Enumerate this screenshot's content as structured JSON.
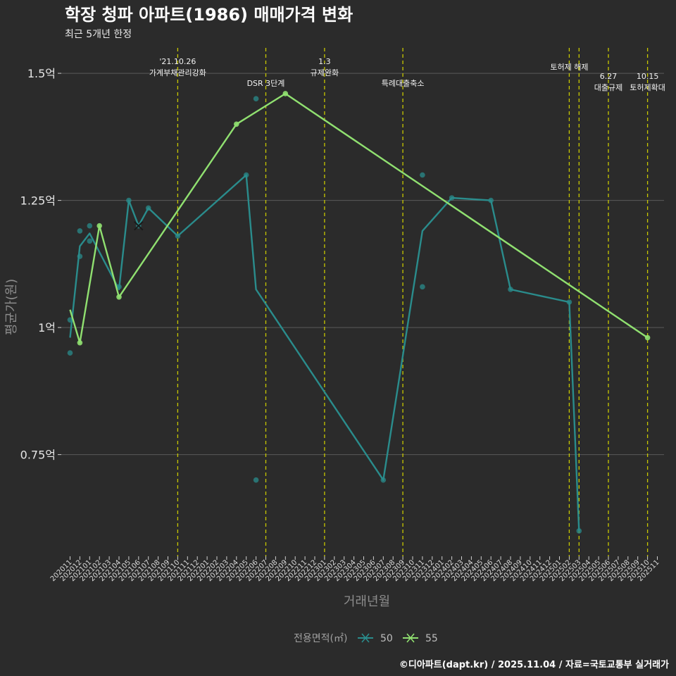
{
  "colors": {
    "background": "#2b2b2b",
    "grid": "#5a5a5a",
    "event_line": "#c8c800",
    "series_50": "#2a8c8c",
    "series_55": "#90e070"
  },
  "chart_data": {
    "type": "line",
    "title": "학장 청파 아파트(1986) 매매가격 변화",
    "subtitle": "최근 5개년 한정",
    "xlabel": "거래년월",
    "ylabel": "평균가(원)",
    "ylim": [
      0.55,
      1.55
    ],
    "y_ticks": [
      {
        "value": 0.75,
        "label": "0.75억"
      },
      {
        "value": 1.0,
        "label": "1억"
      },
      {
        "value": 1.25,
        "label": "1.25억"
      },
      {
        "value": 1.5,
        "label": "1.5억"
      }
    ],
    "x_months": [
      "202011",
      "202012",
      "202101",
      "202102",
      "202103",
      "202104",
      "202105",
      "202106",
      "202107",
      "202108",
      "202109",
      "202110",
      "202111",
      "202112",
      "202201",
      "202202",
      "202203",
      "202204",
      "202205",
      "202206",
      "202207",
      "202208",
      "202209",
      "202210",
      "202211",
      "202212",
      "202301",
      "202302",
      "202303",
      "202304",
      "202305",
      "202306",
      "202307",
      "202308",
      "202309",
      "202310",
      "202311",
      "202312",
      "202401",
      "202402",
      "202403",
      "202404",
      "202405",
      "202406",
      "202407",
      "202408",
      "202409",
      "202410",
      "202411",
      "202412",
      "202501",
      "202502",
      "202503",
      "202504",
      "202505",
      "202506",
      "202507",
      "202508",
      "202509",
      "202510",
      "202511"
    ],
    "legend_title": "전용면적(㎡)",
    "series": [
      {
        "name": "50",
        "color": "#2a8c8c",
        "line": [
          {
            "m": "202011",
            "v": 0.98
          },
          {
            "m": "202012",
            "v": 1.16
          },
          {
            "m": "202101",
            "v": 1.185
          },
          {
            "m": "202104",
            "v": 1.075
          },
          {
            "m": "202105",
            "v": 1.25
          },
          {
            "m": "202106",
            "v": 1.2
          },
          {
            "m": "202107",
            "v": 1.235
          },
          {
            "m": "202110",
            "v": 1.18
          },
          {
            "m": "202205",
            "v": 1.3
          },
          {
            "m": "202206",
            "v": 1.075
          },
          {
            "m": "202307",
            "v": 0.7
          },
          {
            "m": "202311",
            "v": 1.19
          },
          {
            "m": "202402",
            "v": 1.255
          },
          {
            "m": "202406",
            "v": 1.25
          },
          {
            "m": "202408",
            "v": 1.075
          },
          {
            "m": "202502",
            "v": 1.05
          },
          {
            "m": "202503",
            "v": 0.6
          }
        ],
        "points": [
          {
            "m": "202011",
            "v": 1.015
          },
          {
            "m": "202011",
            "v": 0.95
          },
          {
            "m": "202012",
            "v": 1.19
          },
          {
            "m": "202012",
            "v": 1.14
          },
          {
            "m": "202101",
            "v": 1.2
          },
          {
            "m": "202101",
            "v": 1.17
          },
          {
            "m": "202104",
            "v": 1.08
          },
          {
            "m": "202105",
            "v": 1.25
          },
          {
            "m": "202106",
            "v": 1.2
          },
          {
            "m": "202107",
            "v": 1.235
          },
          {
            "m": "202110",
            "v": 1.18
          },
          {
            "m": "202205",
            "v": 1.3
          },
          {
            "m": "202206",
            "v": 1.45
          },
          {
            "m": "202206",
            "v": 0.7
          },
          {
            "m": "202307",
            "v": 0.7
          },
          {
            "m": "202311",
            "v": 1.3
          },
          {
            "m": "202311",
            "v": 1.08
          },
          {
            "m": "202402",
            "v": 1.255
          },
          {
            "m": "202406",
            "v": 1.25
          },
          {
            "m": "202408",
            "v": 1.075
          },
          {
            "m": "202502",
            "v": 1.05
          },
          {
            "m": "202503",
            "v": 0.6
          }
        ]
      },
      {
        "name": "55",
        "color": "#90e070",
        "line": [
          {
            "m": "202011",
            "v": 1.035
          },
          {
            "m": "202012",
            "v": 0.97
          },
          {
            "m": "202102",
            "v": 1.2
          },
          {
            "m": "202104",
            "v": 1.06
          },
          {
            "m": "202204",
            "v": 1.4
          },
          {
            "m": "202209",
            "v": 1.46
          },
          {
            "m": "202510",
            "v": 0.98
          }
        ],
        "points": [
          {
            "m": "202012",
            "v": 0.97
          },
          {
            "m": "202102",
            "v": 1.2
          },
          {
            "m": "202104",
            "v": 1.06
          },
          {
            "m": "202204",
            "v": 1.4
          },
          {
            "m": "202209",
            "v": 1.46
          },
          {
            "m": "202510",
            "v": 0.98
          }
        ]
      }
    ],
    "events": [
      {
        "m": "202110",
        "lines": [
          "'21.10.26",
          "가계부채관리강화"
        ],
        "tier": 0
      },
      {
        "m": "202207",
        "lines": [
          "DSR 3단계"
        ],
        "tier": 2
      },
      {
        "m": "202301",
        "lines": [
          "1.3",
          "규제완화"
        ],
        "tier": 0
      },
      {
        "m": "202309",
        "lines": [
          "특례대출축소"
        ],
        "tier": 2
      },
      {
        "m": "202502",
        "lines": [
          "토허제 해제"
        ],
        "tier": 1
      },
      {
        "m": "202503",
        "lines": [],
        "tier": 1
      },
      {
        "m": "202506",
        "lines": [
          "6.27",
          "대출규제"
        ],
        "tier": 3
      },
      {
        "m": "202510",
        "lines": [
          "10.15",
          "토허제확대"
        ],
        "tier": 3
      }
    ]
  },
  "caption": "©디아파트(dapt.kr) / 2025.11.04 / 자료=국토교통부 실거래가"
}
